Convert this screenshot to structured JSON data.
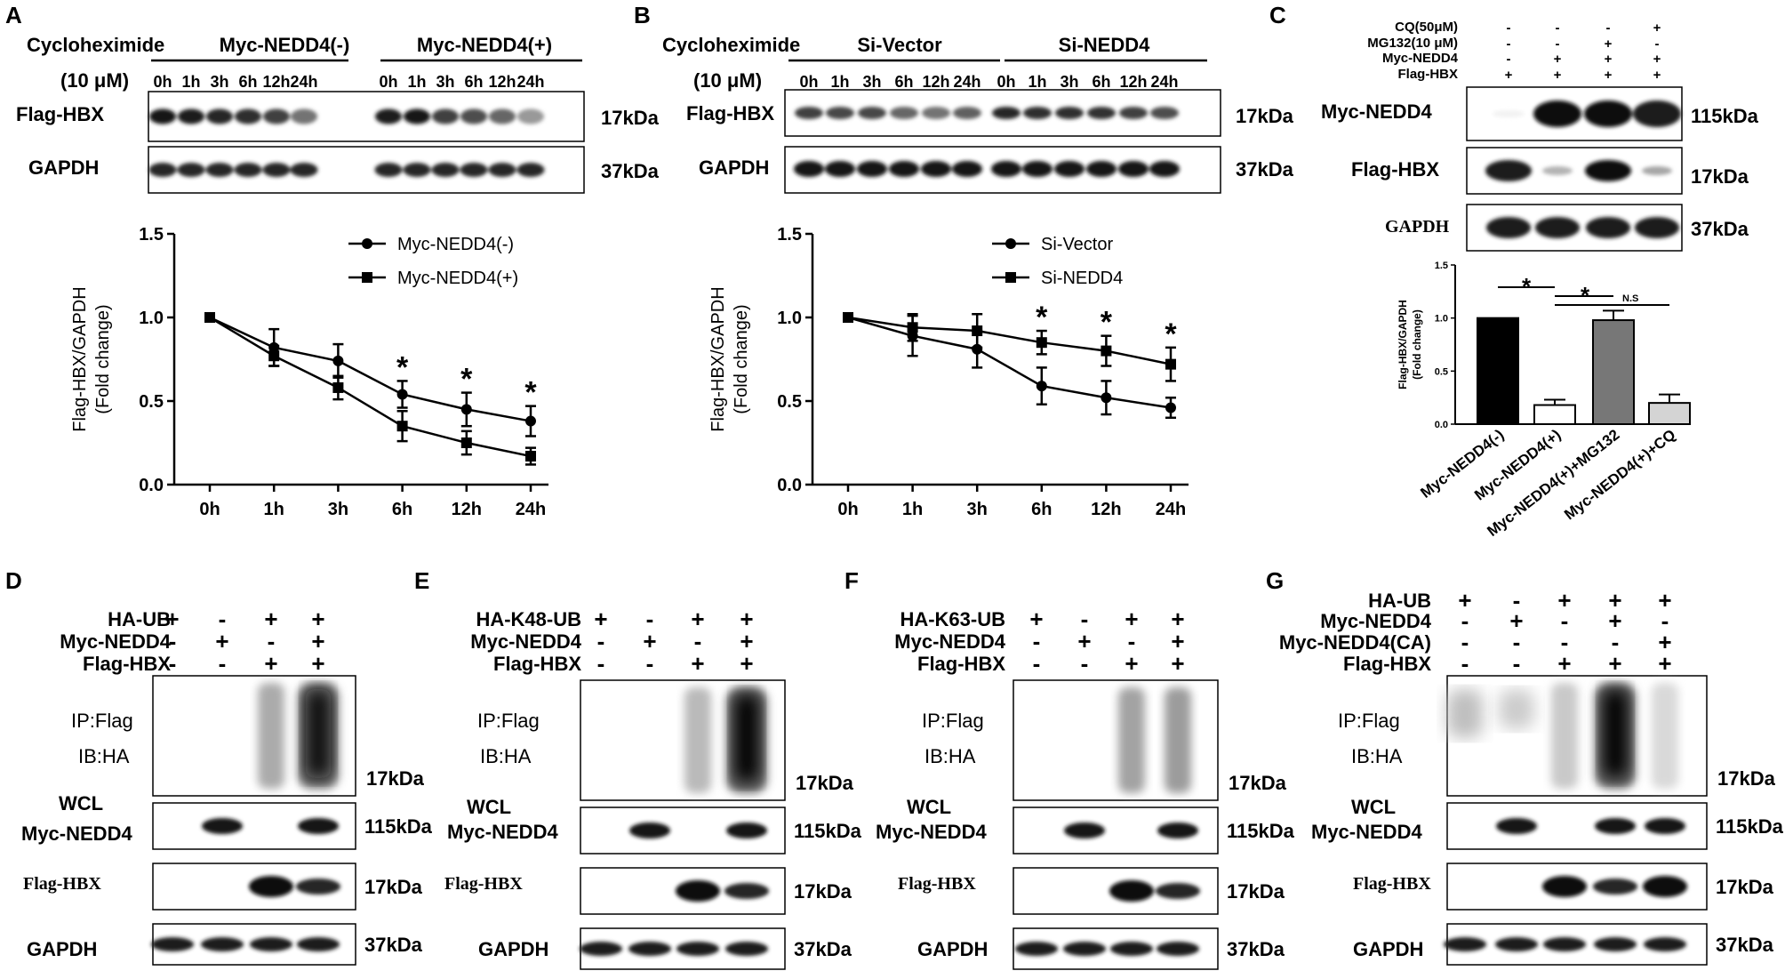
{
  "common": {
    "kda_17": "17kDa",
    "kda_37": "37kDa",
    "kda_115": "115kDa",
    "plus": "+",
    "minus": "-",
    "star": "*",
    "ns": "N.S",
    "flag_hbx": "Flag-HBX",
    "gapdh": "GAPDH",
    "gapdh_caps": "GAPDH",
    "myc_nedd4": "Myc-NEDD4",
    "ip_flag": "IP:Flag",
    "ib_ha": "IB:HA",
    "wcl": "WCL"
  },
  "panelA": {
    "label": "A",
    "cycloheximide": "Cycloheximide",
    "dose": "(10 μM)",
    "group1": "Myc-NEDD4(-)",
    "group2": "Myc-NEDD4(+)",
    "timepoints": [
      "0h",
      "1h",
      "3h",
      "6h",
      "12h",
      "24h"
    ]
  },
  "panelB": {
    "label": "B",
    "cycloheximide": "Cycloheximide",
    "dose": "(10 μM)",
    "group1": "Si-Vector",
    "group2": "Si-NEDD4",
    "timepoints": [
      "0h",
      "1h",
      "3h",
      "6h",
      "12h",
      "24h"
    ]
  },
  "panelC": {
    "label": "C",
    "matrix_rows": [
      {
        "name": "CQ(50μM)",
        "signs": [
          "-",
          "-",
          "-",
          "+"
        ]
      },
      {
        "name": "MG132(10 μM)",
        "signs": [
          "-",
          "-",
          "+",
          "-"
        ]
      },
      {
        "name": "Myc-NEDD4",
        "signs": [
          "-",
          "+",
          "+",
          "+"
        ]
      },
      {
        "name": "Flag-HBX",
        "signs": [
          "+",
          "+",
          "+",
          "+"
        ]
      }
    ]
  },
  "panelD": {
    "label": "D",
    "rows": [
      {
        "name": "HA-UB",
        "signs": [
          "+",
          "-",
          "+",
          "+"
        ]
      },
      {
        "name": "Myc-NEDD4",
        "signs": [
          "-",
          "+",
          "-",
          "+"
        ]
      },
      {
        "name": "Flag-HBX",
        "signs": [
          "-",
          "-",
          "+",
          "+"
        ]
      }
    ]
  },
  "panelE": {
    "label": "E",
    "rows": [
      {
        "name": "HA-K48-UB",
        "signs": [
          "+",
          "-",
          "+",
          "+"
        ]
      },
      {
        "name": "Myc-NEDD4",
        "signs": [
          "-",
          "+",
          "-",
          "+"
        ]
      },
      {
        "name": "Flag-HBX",
        "signs": [
          "-",
          "-",
          "+",
          "+"
        ]
      }
    ]
  },
  "panelF": {
    "label": "F",
    "rows": [
      {
        "name": "HA-K63-UB",
        "signs": [
          "+",
          "-",
          "+",
          "+"
        ]
      },
      {
        "name": "Myc-NEDD4",
        "signs": [
          "-",
          "+",
          "-",
          "+"
        ]
      },
      {
        "name": "Flag-HBX",
        "signs": [
          "-",
          "-",
          "+",
          "+"
        ]
      }
    ]
  },
  "panelG": {
    "label": "G",
    "rows": [
      {
        "name": "HA-UB",
        "signs": [
          "+",
          "-",
          "+",
          "+",
          "+"
        ]
      },
      {
        "name": "Myc-NEDD4",
        "signs": [
          "-",
          "+",
          "-",
          "+",
          "-"
        ]
      },
      {
        "name": "Myc-NEDD4(CA)",
        "signs": [
          "-",
          "-",
          "-",
          "-",
          "+"
        ]
      },
      {
        "name": "Flag-HBX",
        "signs": [
          "-",
          "-",
          "+",
          "+",
          "+"
        ]
      }
    ]
  },
  "chart_data": [
    {
      "type": "line",
      "panel": "A",
      "ylabel": "Flag-HBX/GAPDH\n(Fold change)",
      "categories": [
        "0h",
        "1h",
        "3h",
        "6h",
        "12h",
        "24h"
      ],
      "ylim": [
        0,
        1.5
      ],
      "yticks": [
        "0.0",
        "0.5",
        "1.0",
        "1.5"
      ],
      "series": [
        {
          "name": "Myc-NEDD4(-)",
          "marker": "circle",
          "values": [
            1.0,
            0.82,
            0.74,
            0.54,
            0.45,
            0.38
          ],
          "errors": [
            0,
            0.11,
            0.1,
            0.08,
            0.1,
            0.09
          ]
        },
        {
          "name": "Myc-NEDD4(+)",
          "marker": "square",
          "values": [
            1.0,
            0.77,
            0.58,
            0.35,
            0.25,
            0.17
          ],
          "errors": [
            0,
            0.06,
            0.07,
            0.09,
            0.07,
            0.05
          ]
        }
      ],
      "significance": [
        "",
        "",
        "",
        "*",
        "*",
        "*"
      ]
    },
    {
      "type": "line",
      "panel": "B",
      "ylabel": "Flag-HBX/GAPDH\n(Fold change)",
      "categories": [
        "0h",
        "1h",
        "3h",
        "6h",
        "12h",
        "24h"
      ],
      "ylim": [
        0,
        1.5
      ],
      "yticks": [
        "0.0",
        "0.5",
        "1.0",
        "1.5"
      ],
      "series": [
        {
          "name": "Si-Vector",
          "marker": "circle",
          "values": [
            1.0,
            0.89,
            0.81,
            0.59,
            0.52,
            0.46
          ],
          "errors": [
            0,
            0.12,
            0.11,
            0.11,
            0.1,
            0.06
          ]
        },
        {
          "name": "Si-NEDD4",
          "marker": "square",
          "values": [
            1.0,
            0.94,
            0.92,
            0.85,
            0.8,
            0.72
          ],
          "errors": [
            0,
            0.08,
            0.1,
            0.07,
            0.09,
            0.1
          ]
        }
      ],
      "significance": [
        "",
        "",
        "",
        "*",
        "*",
        "*"
      ]
    },
    {
      "type": "bar",
      "panel": "C",
      "ylabel": "Flag-HBX/GAPDH\n(Fold change)",
      "categories": [
        "Myc-NEDD4(-)",
        "Myc-NEDD4(+)",
        "Myc-NEDD4(+)+MG132",
        "Myc-NEDD4(+)+CQ"
      ],
      "values": [
        1.0,
        0.18,
        0.98,
        0.2
      ],
      "errors": [
        0,
        0.05,
        0.09,
        0.08
      ],
      "colors": [
        "#000000",
        "#ffffff",
        "#777777",
        "#d4d4d4"
      ],
      "ylim": [
        0,
        1.5
      ],
      "yticks": [
        "0.0",
        "0.5",
        "1.0",
        "1.5"
      ]
    }
  ]
}
